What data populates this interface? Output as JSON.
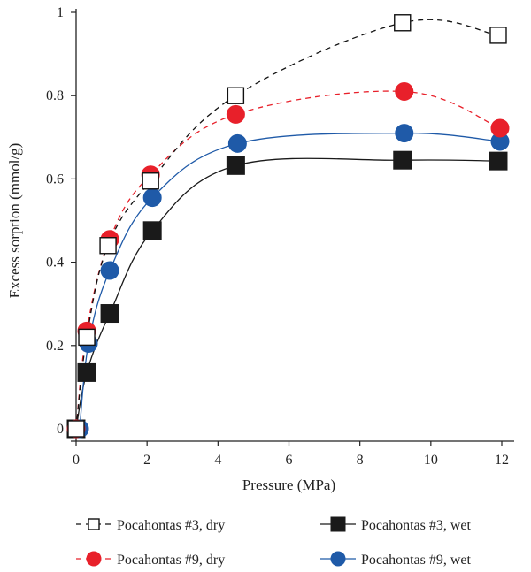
{
  "chart_data": {
    "type": "line",
    "title": "",
    "xlabel": "Pressure (MPa)",
    "ylabel": "Excess sorption (mmol/g)",
    "xlim": [
      0,
      12
    ],
    "ylim": [
      0,
      1
    ],
    "x_ticks": [
      0,
      2,
      4,
      6,
      8,
      10,
      12
    ],
    "y_ticks": [
      0,
      0.2,
      0.4,
      0.6,
      0.8,
      1
    ],
    "x_tick_labels": [
      "0",
      "2",
      "4",
      "6",
      "8",
      "10",
      "12"
    ],
    "y_tick_labels": [
      "0",
      "0.2",
      "0.4",
      "0.6",
      "0.8",
      "1"
    ],
    "grid": false,
    "legend_position": "bottom",
    "series": [
      {
        "name": "Pocahontas #3, dry",
        "marker": "open-square",
        "line": "dashed",
        "color": "#111111",
        "x": [
          0,
          0.3,
          0.9,
          2.1,
          4.5,
          9.2,
          11.9
        ],
        "y": [
          0,
          0.22,
          0.44,
          0.595,
          0.8,
          0.975,
          0.945
        ]
      },
      {
        "name": "Pocahontas #9, dry",
        "marker": "circle",
        "line": "dashed",
        "color": "#e8202a",
        "x": [
          0,
          0.3,
          0.95,
          2.1,
          4.5,
          9.25,
          11.95
        ],
        "y": [
          0,
          0.235,
          0.455,
          0.61,
          0.755,
          0.81,
          0.722
        ]
      },
      {
        "name": "Pocahontas #3, wet",
        "marker": "filled-square",
        "line": "solid",
        "color": "#1a1a1a",
        "x": [
          0,
          0.3,
          0.95,
          2.15,
          4.5,
          9.2,
          11.9
        ],
        "y": [
          0,
          0.135,
          0.277,
          0.476,
          0.632,
          0.645,
          0.643
        ]
      },
      {
        "name": "Pocahontas #9, wet",
        "marker": "circle",
        "line": "solid",
        "color": "#1f5aa8",
        "x": [
          0.1,
          0.35,
          0.95,
          2.15,
          4.55,
          9.25,
          11.95
        ],
        "y": [
          0,
          0.205,
          0.38,
          0.555,
          0.685,
          0.71,
          0.69
        ]
      }
    ]
  }
}
